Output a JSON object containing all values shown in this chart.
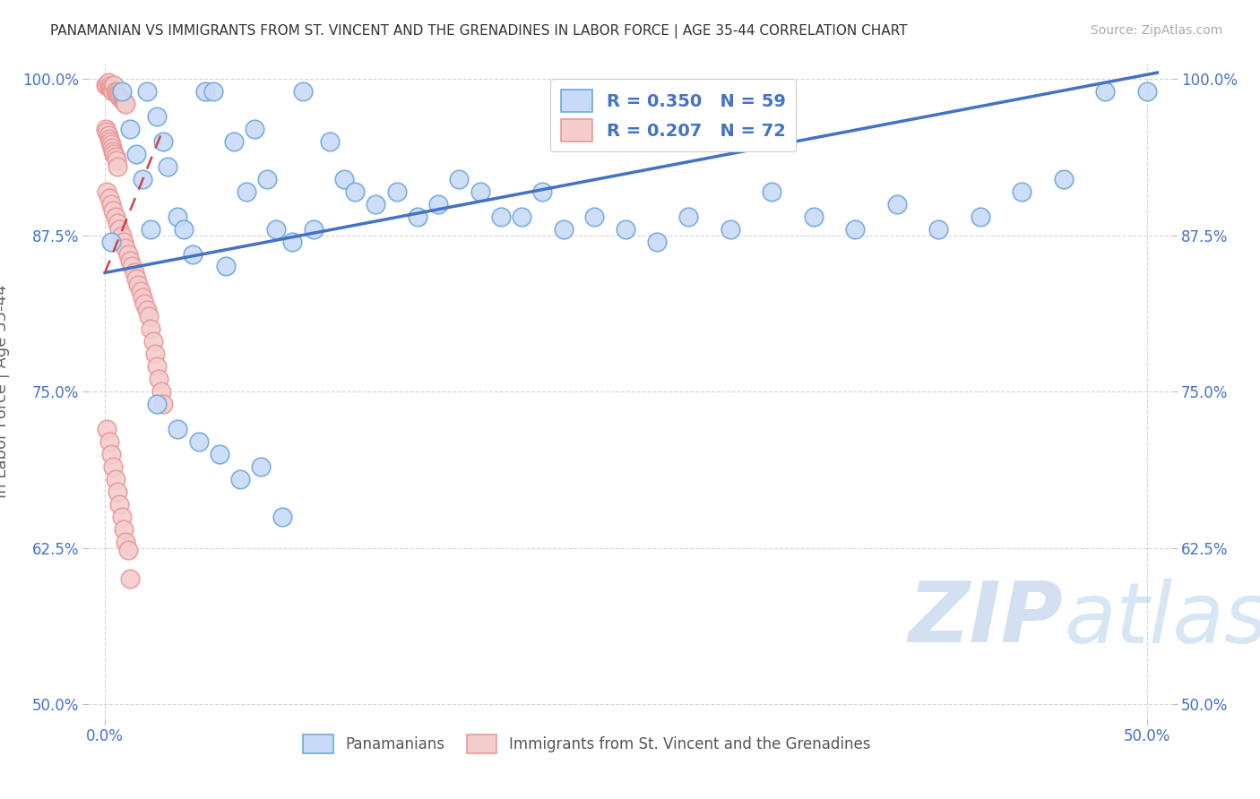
{
  "title": "PANAMANIAN VS IMMIGRANTS FROM ST. VINCENT AND THE GRENADINES IN LABOR FORCE | AGE 35-44 CORRELATION CHART",
  "source": "Source: ZipAtlas.com",
  "ylabel": "In Labor Force | Age 35-44",
  "xlim": [
    -0.008,
    0.512
  ],
  "ylim": [
    0.488,
    1.012
  ],
  "xticks": [
    0.0,
    0.5
  ],
  "xticklabels": [
    "0.0%",
    "50.0%"
  ],
  "yticks": [
    0.5,
    0.625,
    0.75,
    0.875,
    1.0
  ],
  "yticklabels": [
    "50.0%",
    "62.5%",
    "75.0%",
    "87.5%",
    "100.0%"
  ],
  "legend_label1": "Panamanians",
  "legend_label2": "Immigrants from St. Vincent and the Grenadines",
  "R1": 0.35,
  "N1": 59,
  "R2": 0.207,
  "N2": 72,
  "blue_face": "#c9daf8",
  "blue_edge": "#6fa8dc",
  "pink_face": "#f4cccc",
  "pink_edge": "#ea9999",
  "trend_blue": "#4472c4",
  "trend_pink": "#cc4444",
  "watermark_zip": "ZIP",
  "watermark_atlas": "atlas",
  "watermark_zip_color": "#b8cce4",
  "watermark_atlas_color": "#9fc5e8",
  "blue_scatter_x": [
    0.003,
    0.008,
    0.012,
    0.015,
    0.018,
    0.02,
    0.022,
    0.025,
    0.028,
    0.03,
    0.035,
    0.038,
    0.042,
    0.048,
    0.052,
    0.058,
    0.062,
    0.068,
    0.072,
    0.078,
    0.082,
    0.09,
    0.095,
    0.1,
    0.108,
    0.115,
    0.12,
    0.13,
    0.14,
    0.15,
    0.16,
    0.17,
    0.18,
    0.19,
    0.2,
    0.21,
    0.22,
    0.235,
    0.25,
    0.265,
    0.28,
    0.3,
    0.32,
    0.34,
    0.36,
    0.38,
    0.4,
    0.42,
    0.44,
    0.46,
    0.48,
    0.5,
    0.025,
    0.035,
    0.045,
    0.055,
    0.065,
    0.075,
    0.085
  ],
  "blue_scatter_y": [
    0.87,
    0.99,
    0.96,
    0.94,
    0.92,
    0.99,
    0.88,
    0.97,
    0.95,
    0.93,
    0.89,
    0.88,
    0.86,
    0.99,
    0.99,
    0.85,
    0.95,
    0.91,
    0.96,
    0.92,
    0.88,
    0.87,
    0.99,
    0.88,
    0.95,
    0.92,
    0.91,
    0.9,
    0.91,
    0.89,
    0.9,
    0.92,
    0.91,
    0.89,
    0.89,
    0.91,
    0.88,
    0.89,
    0.88,
    0.87,
    0.89,
    0.88,
    0.91,
    0.89,
    0.88,
    0.9,
    0.88,
    0.89,
    0.91,
    0.92,
    0.99,
    0.99,
    0.74,
    0.72,
    0.71,
    0.7,
    0.68,
    0.69,
    0.65
  ],
  "pink_scatter_x": [
    0.0005,
    0.001,
    0.0015,
    0.002,
    0.0025,
    0.003,
    0.0035,
    0.004,
    0.0045,
    0.005,
    0.0055,
    0.006,
    0.0065,
    0.007,
    0.0075,
    0.008,
    0.0085,
    0.009,
    0.0095,
    0.01,
    0.0005,
    0.001,
    0.0015,
    0.002,
    0.0025,
    0.003,
    0.0035,
    0.004,
    0.0045,
    0.005,
    0.0055,
    0.006,
    0.001,
    0.002,
    0.003,
    0.004,
    0.005,
    0.006,
    0.007,
    0.008,
    0.009,
    0.01,
    0.011,
    0.012,
    0.013,
    0.014,
    0.015,
    0.016,
    0.017,
    0.018,
    0.019,
    0.02,
    0.021,
    0.022,
    0.023,
    0.024,
    0.025,
    0.026,
    0.027,
    0.028,
    0.001,
    0.002,
    0.003,
    0.004,
    0.005,
    0.006,
    0.007,
    0.008,
    0.009,
    0.01,
    0.011,
    0.012
  ],
  "pink_scatter_y": [
    0.995,
    0.995,
    0.997,
    0.994,
    0.993,
    0.992,
    0.991,
    0.99,
    0.995,
    0.99,
    0.989,
    0.988,
    0.987,
    0.986,
    0.985,
    0.984,
    0.983,
    0.982,
    0.981,
    0.98,
    0.96,
    0.958,
    0.955,
    0.952,
    0.95,
    0.948,
    0.945,
    0.942,
    0.94,
    0.938,
    0.935,
    0.93,
    0.91,
    0.905,
    0.9,
    0.895,
    0.89,
    0.885,
    0.88,
    0.875,
    0.87,
    0.865,
    0.86,
    0.855,
    0.85,
    0.845,
    0.84,
    0.835,
    0.83,
    0.825,
    0.82,
    0.815,
    0.81,
    0.8,
    0.79,
    0.78,
    0.77,
    0.76,
    0.75,
    0.74,
    0.72,
    0.71,
    0.7,
    0.69,
    0.68,
    0.67,
    0.66,
    0.65,
    0.64,
    0.63,
    0.623,
    0.6
  ],
  "blue_trend_x": [
    0.0,
    0.505
  ],
  "blue_trend_y": [
    0.845,
    1.005
  ],
  "pink_trend_x": [
    0.0,
    0.028
  ],
  "pink_trend_y": [
    0.845,
    0.96
  ]
}
